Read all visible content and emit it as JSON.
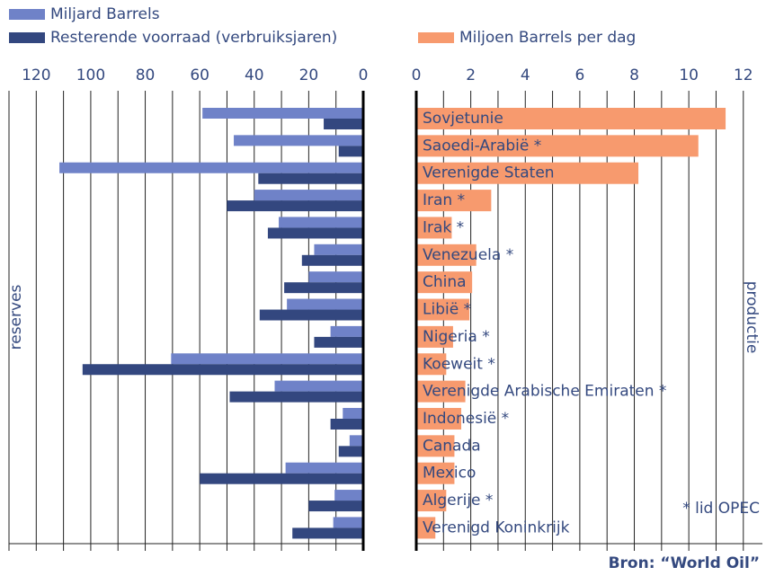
{
  "source": "Bron: “World Oil”",
  "chart_data": [
    {
      "type": "bar",
      "orientation": "horizontal",
      "axis_label": "reserves",
      "xlim": [
        130,
        0
      ],
      "xticks": [
        120,
        100,
        80,
        60,
        40,
        20,
        0
      ],
      "minor_xticks": [
        130,
        110,
        90,
        70,
        50,
        30,
        10
      ],
      "grid": true,
      "series": [
        {
          "name": "Miljard Barrels",
          "color": "#6f82c8",
          "values": [
            59,
            47.5,
            111.5,
            40,
            31,
            18,
            20,
            28,
            12,
            70.5,
            32.5,
            7.5,
            5,
            28.5,
            10.5,
            11
          ]
        },
        {
          "name": "Resterende voorraad (verbruiksjaren)",
          "color": "#33477f",
          "values": [
            14.5,
            9,
            38.5,
            50,
            35,
            22.5,
            29,
            38,
            18,
            103,
            49,
            12,
            9,
            60,
            20,
            26
          ]
        }
      ]
    },
    {
      "type": "bar",
      "orientation": "horizontal",
      "axis_label": "productie",
      "annotation": "* lid OPEC",
      "xlim": [
        0,
        12.7
      ],
      "xticks": [
        0,
        2,
        4,
        6,
        8,
        10,
        12
      ],
      "minor_xticks": [
        1,
        3,
        5,
        7,
        9,
        11
      ],
      "grid": true,
      "categories": [
        "Sovjetunie",
        "Saoedi-Arabië *",
        "Verenigde Staten",
        "Iran *",
        "Irak *",
        "Venezuela *",
        "China",
        "Libië *",
        "Nigeria *",
        "Koeweit *",
        "Verenigde Arabische Emiraten *",
        "Indonesië *",
        "Canada",
        "Mexico",
        "Algerije *",
        "Verenigd Koninkrijk"
      ],
      "series": [
        {
          "name": "Miljoen Barrels per dag",
          "color": "#f79a6e",
          "values": [
            11.35,
            10.35,
            8.15,
            2.75,
            1.3,
            2.2,
            2.05,
            1.95,
            1.35,
            1.1,
            1.8,
            1.65,
            1.4,
            1.4,
            1.1,
            0.7
          ]
        }
      ]
    }
  ]
}
